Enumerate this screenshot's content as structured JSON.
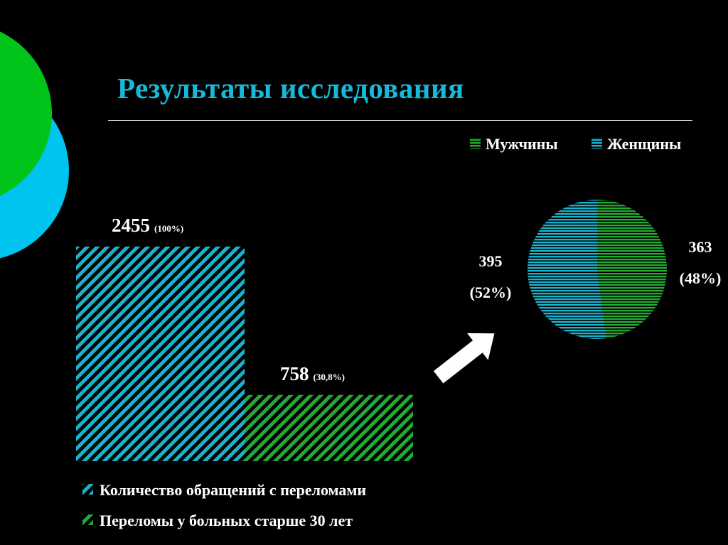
{
  "slide": {
    "title": "Результаты исследования"
  },
  "colors": {
    "cyan": "#1ab3cc",
    "green": "#22aa33",
    "accent_circle_green": "#00c41a",
    "accent_circle_cyan": "#00c4f0"
  },
  "chart_data": [
    {
      "type": "bar",
      "title": "",
      "categories": [
        "Количество обращений с переломами",
        "Переломы у больных старше 30 лет"
      ],
      "values": [
        2455,
        758
      ],
      "value_labels": [
        "2455",
        "758"
      ],
      "percent_labels": [
        "(100%)",
        "(30,8%)"
      ],
      "legend": [
        {
          "name": "Количество обращений с переломами",
          "color": "#1ab3cc"
        },
        {
          "name": "Переломы у больных старше 30 лет",
          "color": "#22aa33"
        }
      ],
      "legend_position": "bottom",
      "grid": false
    },
    {
      "type": "pie",
      "title": "",
      "slices": [
        {
          "name": "Мужчины",
          "value": 363,
          "label": "363",
          "percent": "(48%)",
          "color": "#22aa33"
        },
        {
          "name": "Женщины",
          "value": 395,
          "label": "395",
          "percent": "(52%)",
          "color": "#1ab3cc"
        }
      ],
      "legend_position": "top-right"
    }
  ]
}
